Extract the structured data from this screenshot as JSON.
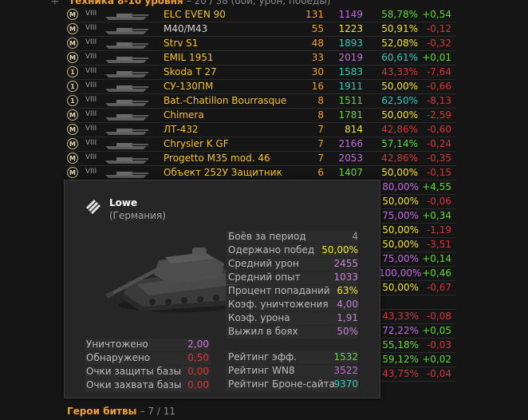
{
  "header": {
    "title": "Техника 8-10 уровня",
    "subtitle": "– 20 / 38 (бой, урон, победы)"
  },
  "colors": {
    "accent": "#f0a030",
    "green": "#62d838",
    "yellow": "#f3e329",
    "teal": "#35c7c1",
    "violet": "#c36ae4",
    "red": "#ce3a3a"
  },
  "tanks": [
    {
      "badge": "M",
      "tier": "VIII",
      "name": "ELC EVEN 90",
      "name_color": "yellow",
      "battles": "131",
      "rating": "1149",
      "rating_color": "violet",
      "winrate": "58,78%",
      "wr_color": "green",
      "delta": "+0,54",
      "delta_color": "green"
    },
    {
      "badge": "M",
      "tier": "VIII",
      "name": "M40/M43",
      "name_color": "grey",
      "battles": "55",
      "rating": "1223",
      "rating_color": "yellow",
      "winrate": "50,91%",
      "wr_color": "yellow",
      "delta": "-0,12",
      "delta_color": "red"
    },
    {
      "badge": "M",
      "tier": "VIII",
      "name": "Strv S1",
      "name_color": "yellow",
      "battles": "48",
      "rating": "1893",
      "rating_color": "teal",
      "winrate": "52,08%",
      "wr_color": "yellow",
      "delta": "-0,32",
      "delta_color": "red"
    },
    {
      "badge": "M",
      "tier": "VIII",
      "name": "EMIL 1951",
      "name_color": "yellow",
      "battles": "33",
      "rating": "2019",
      "rating_color": "violet",
      "winrate": "60,61%",
      "wr_color": "teal",
      "delta": "+0,01",
      "delta_color": "green"
    },
    {
      "badge": "1",
      "tier": "VIII",
      "name": "Skoda T 27",
      "name_color": "yellow",
      "battles": "30",
      "rating": "1583",
      "rating_color": "teal",
      "winrate": "43,33%",
      "wr_color": "red",
      "delta": "-7,64",
      "delta_color": "red"
    },
    {
      "badge": "1",
      "tier": "VIII",
      "name": "СУ-130ПМ",
      "name_color": "yellow",
      "battles": "16",
      "rating": "1911",
      "rating_color": "teal",
      "winrate": "50,00%",
      "wr_color": "yellow",
      "delta": "-0,66",
      "delta_color": "red"
    },
    {
      "badge": "1",
      "tier": "VIII",
      "name": "Bat.-Chatillon Bourrasque",
      "name_color": "yellow",
      "battles": "8",
      "rating": "1511",
      "rating_color": "green",
      "winrate": "62,50%",
      "wr_color": "teal",
      "delta": "-8,13",
      "delta_color": "red"
    },
    {
      "badge": "M",
      "tier": "VIII",
      "name": "Chimera",
      "name_color": "yellow",
      "battles": "8",
      "rating": "1781",
      "rating_color": "green",
      "winrate": "50,00%",
      "wr_color": "yellow",
      "delta": "-2,59",
      "delta_color": "red"
    },
    {
      "badge": "M",
      "tier": "VIII",
      "name": "ЛТ-432",
      "name_color": "yellow",
      "battles": "7",
      "rating": "814",
      "rating_color": "yellow",
      "winrate": "42,86%",
      "wr_color": "red",
      "delta": "-0,60",
      "delta_color": "red"
    },
    {
      "badge": "M",
      "tier": "VIII",
      "name": "Chrysler K GF",
      "name_color": "yellow",
      "battles": "7",
      "rating": "2166",
      "rating_color": "violet",
      "winrate": "57,14%",
      "wr_color": "green",
      "delta": "-0,24",
      "delta_color": "red"
    },
    {
      "badge": "M",
      "tier": "VIII",
      "name": "Progetto M35 mod. 46",
      "name_color": "yellow",
      "battles": "7",
      "rating": "2053",
      "rating_color": "violet",
      "winrate": "42,86%",
      "wr_color": "red",
      "delta": "-0,35",
      "delta_color": "red"
    },
    {
      "badge": "M",
      "tier": "VIII",
      "name": "Объект 252У Защитник",
      "name_color": "yellow",
      "battles": "6",
      "rating": "1407",
      "rating_color": "green",
      "winrate": "50,00%",
      "wr_color": "yellow",
      "delta": "-0,15",
      "delta_color": "red"
    }
  ],
  "partial_rows": [
    {
      "winrate": "80,00%",
      "wr_color": "violet",
      "delta": "+4,55",
      "delta_color": "green"
    },
    {
      "winrate": "50,00%",
      "wr_color": "yellow",
      "delta": "-0,06",
      "delta_color": "red"
    },
    {
      "winrate": "75,00%",
      "wr_color": "violet",
      "delta": "+0,34",
      "delta_color": "green"
    },
    {
      "winrate": "50,00%",
      "wr_color": "yellow",
      "delta": "-1,19",
      "delta_color": "red"
    },
    {
      "winrate": "50,00%",
      "wr_color": "yellow",
      "delta": "-3,51",
      "delta_color": "red"
    },
    {
      "winrate": "75,00%",
      "wr_color": "violet",
      "delta": "+0,14",
      "delta_color": "green"
    },
    {
      "winrate": "100,00%",
      "wr_color": "violet",
      "delta": "+0,46",
      "delta_color": "green"
    },
    {
      "winrate": "50,00%",
      "wr_color": "yellow",
      "delta": "-0,67",
      "delta_color": "red"
    },
    {
      "winrate": "",
      "wr_color": "yellow",
      "delta": "",
      "delta_color": "red"
    },
    {
      "winrate": "43,33%",
      "wr_color": "red",
      "delta": "-0,08",
      "delta_color": "red"
    },
    {
      "winrate": "72,22%",
      "wr_color": "violet",
      "delta": "+0,05",
      "delta_color": "green"
    },
    {
      "winrate": "55,18%",
      "wr_color": "green",
      "delta": "-0,03",
      "delta_color": "red"
    },
    {
      "winrate": "59,12%",
      "wr_color": "green",
      "delta": "+0,02",
      "delta_color": "green"
    },
    {
      "winrate": "43,75%",
      "wr_color": "red",
      "delta": "-0,04",
      "delta_color": "red"
    }
  ],
  "tooltip": {
    "tank_name": "Lowe",
    "country": "(Германия)",
    "nation_icon": "germany-nation-icon",
    "stats_right": [
      {
        "label": "Боёв за период",
        "value": "4",
        "color": "grey"
      },
      {
        "label": "Одержано побед",
        "value": "50,00%",
        "color": "yellow"
      },
      {
        "label": "Средний урон",
        "value": "2455",
        "color": "pink"
      },
      {
        "label": "Средний опыт",
        "value": "1033",
        "color": "pink"
      },
      {
        "label": "Процент попаданий",
        "value": "63%",
        "color": "yellow"
      },
      {
        "label": "Коэф. уничтожения",
        "value": "4,00",
        "color": "pink"
      },
      {
        "label": "Коэф. урона",
        "value": "1,91",
        "color": "pink"
      },
      {
        "label": "Выжил в боях",
        "value": "50%",
        "color": "pink"
      }
    ],
    "stats_left": [
      {
        "label": "Уничтожено",
        "value": "2,00",
        "color": "pink"
      },
      {
        "label": "Обнаружено",
        "value": "0,50",
        "color": "red"
      },
      {
        "label": "Очки защиты базы",
        "value": "0,00",
        "color": "red"
      },
      {
        "label": "Очки захвата базы",
        "value": "0,00",
        "color": "red"
      }
    ],
    "ratings": [
      {
        "label": "Рейтинг эфф.",
        "value": "1532",
        "color": "green"
      },
      {
        "label": "Рейтинг WN8",
        "value": "3522",
        "color": "violet"
      },
      {
        "label": "Рейтинг Броне-сайта",
        "value": "9370",
        "color": "teal"
      }
    ]
  },
  "footer": {
    "title": "Герои битвы",
    "subtitle": "– 7 / 11"
  }
}
